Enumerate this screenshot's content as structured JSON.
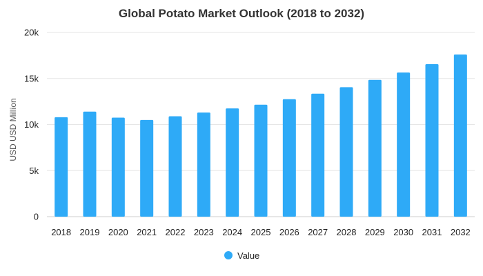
{
  "chart_data": {
    "type": "bar",
    "title": "Global Potato Market Outlook (2018 to 2032)",
    "xlabel": "",
    "ylabel": "USD USD Million",
    "categories": [
      "2018",
      "2019",
      "2020",
      "2021",
      "2022",
      "2023",
      "2024",
      "2025",
      "2026",
      "2027",
      "2028",
      "2029",
      "2030",
      "2031",
      "2032"
    ],
    "series": [
      {
        "name": "Value",
        "color": "#2eaaf7",
        "values": [
          10800,
          11400,
          10750,
          10500,
          10900,
          11300,
          11750,
          12150,
          12750,
          13350,
          14050,
          14850,
          15650,
          16550,
          17600
        ]
      }
    ],
    "ylim": [
      0,
      20000
    ],
    "yticks": [
      {
        "value": 0,
        "label": "0"
      },
      {
        "value": 5000,
        "label": "5k"
      },
      {
        "value": 10000,
        "label": "10k"
      },
      {
        "value": 15000,
        "label": "15k"
      },
      {
        "value": 20000,
        "label": "20k"
      }
    ],
    "grid": true,
    "legend_position": "bottom-center"
  }
}
